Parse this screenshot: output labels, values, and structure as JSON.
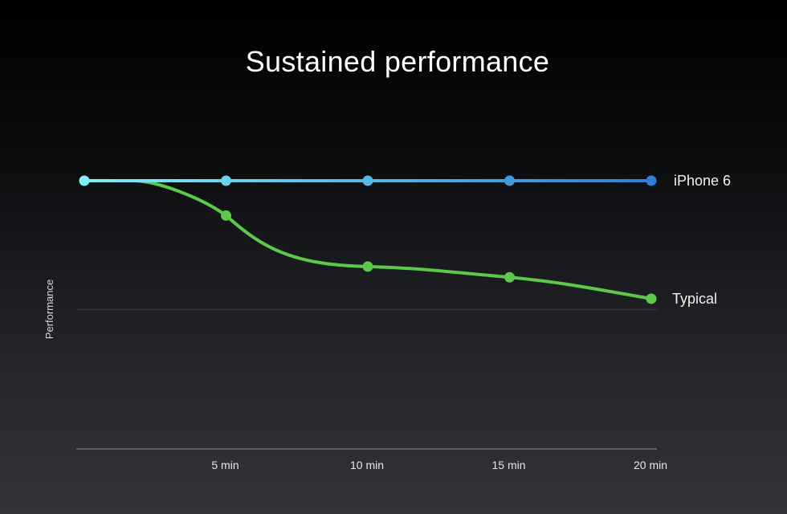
{
  "chart_data": {
    "type": "line",
    "title": "Sustained performance",
    "xlabel": "",
    "ylabel": "Performance",
    "x": [
      0,
      5,
      10,
      15,
      20
    ],
    "x_tick_labels": [
      "",
      "5 min",
      "10 min",
      "15 min",
      "20 min"
    ],
    "xlim": [
      0,
      20
    ],
    "ylim": [
      0,
      100
    ],
    "grid": true,
    "series": [
      {
        "name": "iPhone 6",
        "values": [
          100,
          100,
          100,
          100,
          100
        ],
        "color_start": "#7ff0f4",
        "color_end": "#2f7fd6"
      },
      {
        "name": "Typical",
        "values": [
          100,
          87,
          68,
          64,
          56
        ],
        "color": "#5cc94a",
        "flat_until": 2
      }
    ]
  }
}
